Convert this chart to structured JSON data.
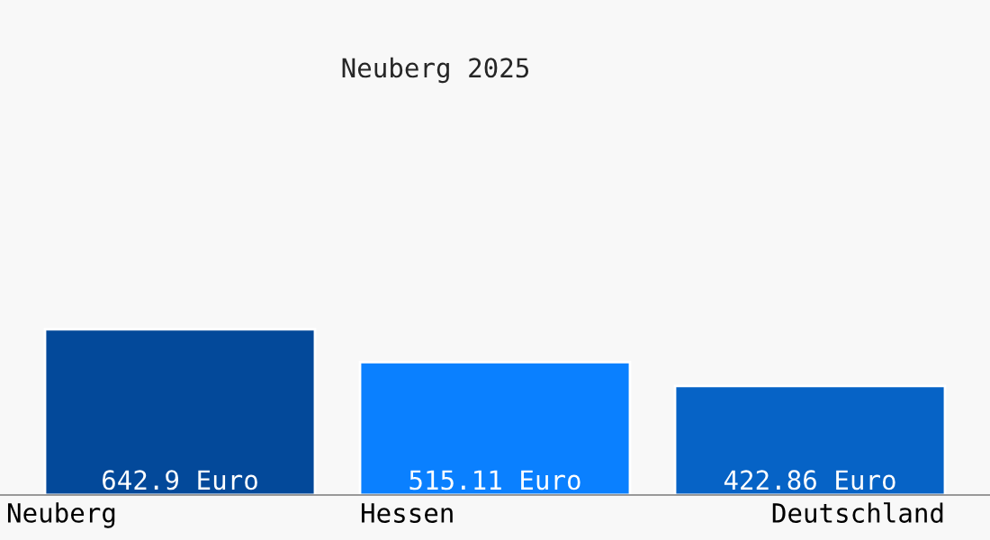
{
  "chart_data": {
    "type": "bar",
    "title": "Neuberg 2025",
    "categories": [
      "Neuberg",
      "Hessen",
      "Deutschland"
    ],
    "values": [
      642.9,
      515.11,
      422.86
    ],
    "colors": [
      "#03499a",
      "#0a80ff",
      "#0663c6"
    ],
    "value_labels": [
      "642.9 Euro",
      "515.11 Euro",
      "422.86 Euro"
    ],
    "ylim": [
      0,
      1920
    ]
  }
}
